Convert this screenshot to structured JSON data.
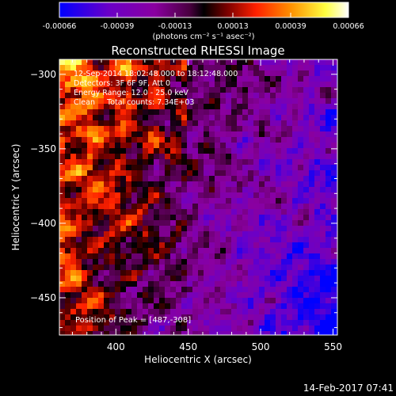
{
  "chart_data": {
    "type": "heatmap",
    "title": "Reconstructed RHESSI Image",
    "xlabel": "Heliocentric X (arcsec)",
    "ylabel": "Heliocentric Y (arcsec)",
    "xlim": [
      361,
      553
    ],
    "ylim": [
      -475,
      -290
    ],
    "xticks": [
      400,
      450,
      500,
      550
    ],
    "yticks": [
      -300,
      -350,
      -400,
      -450
    ],
    "colorbar": {
      "range": [
        -0.00066,
        0.00066
      ],
      "ticks": [
        "-0.00066",
        "-0.00039",
        "-0.00013",
        "0.00013",
        "0.00039",
        "0.00066"
      ],
      "units": "(photons cm⁻² s⁻¹ asec⁻²)"
    },
    "annotations": [
      "12-Sep-2014 18:02:48.000 to 18:12:48.000",
      "Detectors: 3F 6F 9F, Att 0",
      "Energy Range: 12.0 - 25.0 keV",
      "Clean     Total counts: 7.34E+03"
    ],
    "peak_label": "Position of Peak = [487,-308]",
    "peak": {
      "x": 487,
      "y": -308
    },
    "timestamp": "14-Feb-2017 07:41"
  }
}
